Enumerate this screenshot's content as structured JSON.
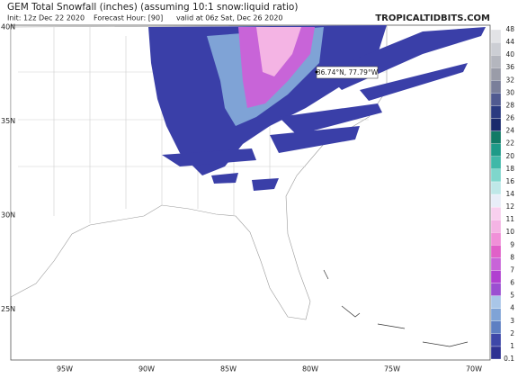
{
  "header": {
    "title": "GEM Total Snowfall (inches) (assuming 10:1 snow:liquid ratio)",
    "init": "Init: 12z Dec 22 2020",
    "forecast_hour": "Forecast Hour: [90]",
    "valid": "valid at 06z Sat, Dec 26 2020",
    "watermark": "TROPICALTIDBITS.COM"
  },
  "map": {
    "lat_labels": [
      "40N",
      "35N",
      "30N",
      "25N"
    ],
    "lon_labels": [
      "95W",
      "90W",
      "85W",
      "80W",
      "75W",
      "70W"
    ],
    "annotation": "36.74°N, 77.79°W"
  },
  "colorbar": {
    "labels": [
      "0.1",
      "1",
      "2",
      "3",
      "4",
      "5",
      "6",
      "7",
      "8",
      "9",
      "10",
      "11",
      "12",
      "14",
      "16",
      "18",
      "20",
      "22",
      "24",
      "26",
      "28",
      "30",
      "32",
      "36",
      "40",
      "44",
      "48"
    ],
    "colors": [
      "#2e3192",
      "#3e47a8",
      "#5e7fc2",
      "#7fa3d6",
      "#a9c6e8",
      "#9b4fd1",
      "#b040d0",
      "#c864d8",
      "#e060c8",
      "#f090d8",
      "#f4b4e4",
      "#f8d0ee",
      "#e8eef8",
      "#bfe8e8",
      "#7fd6cc",
      "#40b8a8",
      "#1e9a88",
      "#117a66",
      "#1a2a6c",
      "#2a3a80",
      "#505a90",
      "#7a7f9a",
      "#9a9ca8",
      "#b4b6be",
      "#ccced4",
      "#e2e3e6"
    ]
  }
}
